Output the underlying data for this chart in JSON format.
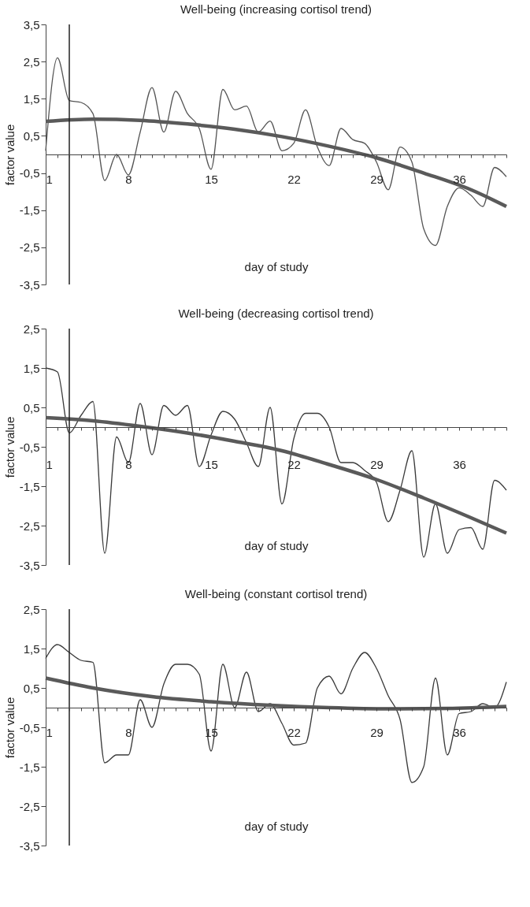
{
  "chart_data": [
    {
      "type": "line",
      "title": "Well-being (increasing cortisol trend)",
      "xlabel": "day of study",
      "ylabel": "factor value",
      "xlim": [
        1,
        40
      ],
      "ylim": [
        -3.5,
        3.5
      ],
      "xticks": [
        1,
        {
          "value": 2,
          "label": null
        },
        {
          "value": 3,
          "label": null
        },
        {
          "value": 4,
          "label": null
        },
        {
          "value": 5,
          "label": null
        },
        {
          "value": 6,
          "label": null
        },
        {
          "value": 7,
          "label": null
        },
        8,
        {
          "value": 9,
          "label": null
        },
        {
          "value": 10,
          "label": null
        },
        {
          "value": 11,
          "label": null
        },
        {
          "value": 12,
          "label": null
        },
        {
          "value": 13,
          "label": null
        },
        {
          "value": 14,
          "label": null
        },
        15,
        {
          "value": 16,
          "label": null
        },
        {
          "value": 17,
          "label": null
        },
        {
          "value": 18,
          "label": null
        },
        {
          "value": 19,
          "label": null
        },
        {
          "value": 20,
          "label": null
        },
        {
          "value": 21,
          "label": null
        },
        22,
        {
          "value": 23,
          "label": null
        },
        {
          "value": 24,
          "label": null
        },
        {
          "value": 25,
          "label": null
        },
        {
          "value": 26,
          "label": null
        },
        {
          "value": 27,
          "label": null
        },
        {
          "value": 28,
          "label": null
        },
        29,
        {
          "value": 30,
          "label": null
        },
        {
          "value": 31,
          "label": null
        },
        {
          "value": 32,
          "label": null
        },
        {
          "value": 33,
          "label": null
        },
        {
          "value": 34,
          "label": null
        },
        {
          "value": 35,
          "label": null
        },
        36,
        {
          "value": 37,
          "label": null
        },
        {
          "value": 38,
          "label": null
        },
        {
          "value": 39,
          "label": null
        },
        {
          "value": 40,
          "label": null
        }
      ],
      "yticks": [
        {
          "value": -3.5,
          "label": "-3,5"
        },
        {
          "value": -2.5,
          "label": "-2,5"
        },
        {
          "value": -1.5,
          "label": "-1,5"
        },
        {
          "value": -0.5,
          "label": "-0,5"
        },
        {
          "value": 0.5,
          "label": "0,5"
        },
        {
          "value": 1.5,
          "label": "1,5"
        },
        {
          "value": 2.5,
          "label": "2,5"
        },
        {
          "value": 3.5,
          "label": "3,5"
        }
      ],
      "grid": false,
      "ref_lines": [
        {
          "axis": "x",
          "value": 3,
          "color": "#222222"
        }
      ],
      "series": [
        {
          "type": "line",
          "color": "#555555",
          "x": [
            1,
            2,
            3,
            4,
            5,
            6,
            7,
            8,
            9,
            10,
            11,
            12,
            13,
            14,
            15,
            16,
            17,
            18,
            19,
            20,
            21,
            22,
            23,
            24,
            25,
            26,
            27,
            28,
            29,
            30,
            31,
            32,
            33,
            34,
            35,
            36,
            37,
            38,
            39,
            40
          ],
          "values": [
            0.1,
            2.6,
            1.45,
            1.4,
            1.1,
            -0.7,
            0.0,
            -0.55,
            0.6,
            1.8,
            0.6,
            1.7,
            1.1,
            0.7,
            -0.4,
            1.75,
            1.2,
            1.3,
            0.6,
            0.9,
            0.1,
            0.3,
            1.2,
            0.2,
            -0.3,
            0.7,
            0.4,
            0.3,
            -0.2,
            -0.95,
            0.2,
            -0.2,
            -2.0,
            -2.45,
            -1.4,
            -0.9,
            -1.1,
            -1.4,
            -0.35,
            -0.6
          ]
        },
        {
          "type": "line",
          "color": "#5a5a5a",
          "x": [
            1,
            5,
            9,
            13,
            17,
            21,
            25,
            29,
            33,
            37,
            40
          ],
          "values": [
            0.89,
            0.95,
            0.92,
            0.82,
            0.68,
            0.48,
            0.22,
            -0.09,
            -0.5,
            -0.95,
            -1.4
          ]
        }
      ]
    },
    {
      "type": "line",
      "title": "Well-being (decreasing cortisol trend)",
      "xlabel": "day of study",
      "ylabel": "factor value",
      "xlim": [
        1,
        40
      ],
      "ylim": [
        -3.5,
        2.5
      ],
      "xticks": [
        1,
        {
          "value": 2,
          "label": null
        },
        {
          "value": 3,
          "label": null
        },
        {
          "value": 4,
          "label": null
        },
        {
          "value": 5,
          "label": null
        },
        {
          "value": 6,
          "label": null
        },
        {
          "value": 7,
          "label": null
        },
        8,
        {
          "value": 9,
          "label": null
        },
        {
          "value": 10,
          "label": null
        },
        {
          "value": 11,
          "label": null
        },
        {
          "value": 12,
          "label": null
        },
        {
          "value": 13,
          "label": null
        },
        {
          "value": 14,
          "label": null
        },
        15,
        {
          "value": 16,
          "label": null
        },
        {
          "value": 17,
          "label": null
        },
        {
          "value": 18,
          "label": null
        },
        {
          "value": 19,
          "label": null
        },
        {
          "value": 20,
          "label": null
        },
        {
          "value": 21,
          "label": null
        },
        22,
        {
          "value": 23,
          "label": null
        },
        {
          "value": 24,
          "label": null
        },
        {
          "value": 25,
          "label": null
        },
        {
          "value": 26,
          "label": null
        },
        {
          "value": 27,
          "label": null
        },
        {
          "value": 28,
          "label": null
        },
        29,
        {
          "value": 30,
          "label": null
        },
        {
          "value": 31,
          "label": null
        },
        {
          "value": 32,
          "label": null
        },
        {
          "value": 33,
          "label": null
        },
        {
          "value": 34,
          "label": null
        },
        {
          "value": 35,
          "label": null
        },
        36,
        {
          "value": 37,
          "label": null
        },
        {
          "value": 38,
          "label": null
        },
        {
          "value": 39,
          "label": null
        },
        {
          "value": 40,
          "label": null
        }
      ],
      "yticks": [
        {
          "value": -3.5,
          "label": "-3,5"
        },
        {
          "value": -2.5,
          "label": "-2,5"
        },
        {
          "value": -1.5,
          "label": "-1,5"
        },
        {
          "value": -0.5,
          "label": "-0,5"
        },
        {
          "value": 0.5,
          "label": "0,5"
        },
        {
          "value": 1.5,
          "label": "1,5"
        },
        {
          "value": 2.5,
          "label": "2,5"
        }
      ],
      "grid": false,
      "ref_lines": [
        {
          "axis": "x",
          "value": 3,
          "color": "#222222"
        }
      ],
      "series": [
        {
          "type": "line",
          "color": "#3a3a3a",
          "x": [
            1,
            2,
            3,
            4,
            5,
            6,
            7,
            8,
            9,
            10,
            11,
            12,
            13,
            14,
            15,
            16,
            17,
            18,
            19,
            20,
            21,
            22,
            23,
            24,
            25,
            26,
            27,
            28,
            29,
            30,
            31,
            32,
            33,
            34,
            35,
            36,
            37,
            38,
            39,
            40
          ],
          "values": [
            1.5,
            1.4,
            -0.15,
            0.3,
            0.65,
            -3.2,
            -0.25,
            -0.9,
            0.6,
            -0.7,
            0.55,
            0.3,
            0.55,
            -1.0,
            -0.2,
            0.4,
            0.2,
            -0.4,
            -1.0,
            0.5,
            -1.95,
            -0.3,
            0.35,
            0.35,
            0.0,
            -0.9,
            -0.9,
            -1.1,
            -1.4,
            -2.4,
            -1.6,
            -0.6,
            -3.3,
            -1.95,
            -3.2,
            -2.6,
            -2.55,
            -3.1,
            -1.35,
            -1.6
          ]
        },
        {
          "type": "line",
          "color": "#5a5a5a",
          "x": [
            1,
            5,
            9,
            13,
            17,
            21,
            25,
            29,
            33,
            37,
            40
          ],
          "values": [
            0.24,
            0.16,
            0.02,
            -0.15,
            -0.36,
            -0.6,
            -0.95,
            -1.33,
            -1.8,
            -2.3,
            -2.69
          ]
        }
      ]
    },
    {
      "type": "line",
      "title": "Well-being (constant cortisol trend)",
      "xlabel": "day of study",
      "ylabel": "factor value",
      "xlim": [
        1,
        40
      ],
      "ylim": [
        -3.5,
        2.5
      ],
      "xticks": [
        1,
        {
          "value": 2,
          "label": null
        },
        {
          "value": 3,
          "label": null
        },
        {
          "value": 4,
          "label": null
        },
        {
          "value": 5,
          "label": null
        },
        {
          "value": 6,
          "label": null
        },
        {
          "value": 7,
          "label": null
        },
        8,
        {
          "value": 9,
          "label": null
        },
        {
          "value": 10,
          "label": null
        },
        {
          "value": 11,
          "label": null
        },
        {
          "value": 12,
          "label": null
        },
        {
          "value": 13,
          "label": null
        },
        {
          "value": 14,
          "label": null
        },
        15,
        {
          "value": 16,
          "label": null
        },
        {
          "value": 17,
          "label": null
        },
        {
          "value": 18,
          "label": null
        },
        {
          "value": 19,
          "label": null
        },
        {
          "value": 20,
          "label": null
        },
        {
          "value": 21,
          "label": null
        },
        22,
        {
          "value": 23,
          "label": null
        },
        {
          "value": 24,
          "label": null
        },
        {
          "value": 25,
          "label": null
        },
        {
          "value": 26,
          "label": null
        },
        {
          "value": 27,
          "label": null
        },
        {
          "value": 28,
          "label": null
        },
        29,
        {
          "value": 30,
          "label": null
        },
        {
          "value": 31,
          "label": null
        },
        {
          "value": 32,
          "label": null
        },
        {
          "value": 33,
          "label": null
        },
        {
          "value": 34,
          "label": null
        },
        {
          "value": 35,
          "label": null
        },
        36,
        {
          "value": 37,
          "label": null
        },
        {
          "value": 38,
          "label": null
        },
        {
          "value": 39,
          "label": null
        },
        {
          "value": 40,
          "label": null
        }
      ],
      "yticks": [
        {
          "value": -3.5,
          "label": "-3,5"
        },
        {
          "value": -2.5,
          "label": "-2,5"
        },
        {
          "value": -1.5,
          "label": "-1,5"
        },
        {
          "value": -0.5,
          "label": "-0,5"
        },
        {
          "value": 0.5,
          "label": "0,5"
        },
        {
          "value": 1.5,
          "label": "1,5"
        },
        {
          "value": 2.5,
          "label": "2,5"
        }
      ],
      "grid": false,
      "ref_lines": [
        {
          "axis": "x",
          "value": 3,
          "color": "#222222"
        }
      ],
      "series": [
        {
          "type": "line",
          "color": "#3a3a3a",
          "x": [
            1,
            2,
            3,
            4,
            5,
            6,
            7,
            8,
            9,
            10,
            11,
            12,
            13,
            14,
            15,
            16,
            17,
            18,
            19,
            20,
            21,
            22,
            23,
            24,
            25,
            26,
            27,
            28,
            29,
            30,
            31,
            32,
            33,
            34,
            35,
            36,
            37,
            38,
            39,
            40
          ],
          "values": [
            1.25,
            1.6,
            1.4,
            1.2,
            1.15,
            -1.4,
            -1.2,
            -1.2,
            0.2,
            -0.5,
            0.6,
            1.1,
            1.1,
            0.85,
            -1.1,
            1.1,
            0.0,
            0.9,
            -0.1,
            0.1,
            -0.4,
            -0.95,
            -0.9,
            0.5,
            0.8,
            0.35,
            1.0,
            1.4,
            1.0,
            0.3,
            -0.3,
            -1.9,
            -1.5,
            0.75,
            -1.2,
            -0.15,
            -0.1,
            0.1,
            0.0,
            0.65
          ]
        },
        {
          "type": "line",
          "color": "#5a5a5a",
          "x": [
            1,
            5,
            10,
            15,
            20,
            25,
            30,
            35,
            40
          ],
          "values": [
            0.75,
            0.5,
            0.28,
            0.15,
            0.06,
            0.0,
            -0.03,
            -0.02,
            0.03
          ]
        }
      ]
    }
  ]
}
